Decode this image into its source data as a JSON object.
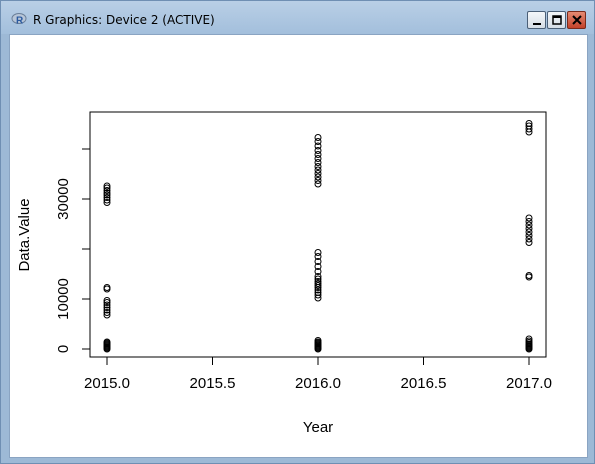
{
  "window": {
    "title": "R Graphics: Device 2 (ACTIVE)",
    "icon": "r-logo-icon",
    "controls": [
      "minimize-icon",
      "maximize-icon",
      "close-icon"
    ]
  },
  "chart_data": {
    "type": "scatter",
    "title": "",
    "xlabel": "Year",
    "ylabel": "Data.Value",
    "xlim": [
      2014.9,
      2017.1
    ],
    "ylim": [
      -1000,
      43000
    ],
    "x_ticks": [
      2015.0,
      2015.5,
      2016.0,
      2016.5,
      2017.0
    ],
    "x_tick_labels": [
      "2015.0",
      "2015.5",
      "2016.0",
      "2016.5",
      "2017.0"
    ],
    "y_ticks": [
      0,
      10000,
      20000,
      30000,
      40000
    ],
    "y_tick_labels": [
      "0",
      "10000",
      "",
      "30000",
      ""
    ],
    "grid": false,
    "series": [
      {
        "points": [
          [
            2015,
            0
          ],
          [
            2015,
            200
          ],
          [
            2015,
            400
          ],
          [
            2015,
            600
          ],
          [
            2015,
            800
          ],
          [
            2015,
            1000
          ],
          [
            2015,
            1200
          ],
          [
            2015,
            1400
          ],
          [
            2015,
            6800
          ],
          [
            2015,
            7300
          ],
          [
            2015,
            7800
          ],
          [
            2015,
            8300
          ],
          [
            2015,
            8800
          ],
          [
            2015,
            9300
          ],
          [
            2015,
            9700
          ],
          [
            2015,
            12000
          ],
          [
            2015,
            12300
          ],
          [
            2015,
            29300
          ],
          [
            2015,
            29800
          ],
          [
            2015,
            30300
          ],
          [
            2015,
            30800
          ],
          [
            2015,
            31200
          ],
          [
            2015,
            31700
          ],
          [
            2015,
            32200
          ],
          [
            2015,
            32600
          ],
          [
            2016,
            0
          ],
          [
            2016,
            200
          ],
          [
            2016,
            400
          ],
          [
            2016,
            600
          ],
          [
            2016,
            800
          ],
          [
            2016,
            1000
          ],
          [
            2016,
            1200
          ],
          [
            2016,
            1400
          ],
          [
            2016,
            1700
          ],
          [
            2016,
            10200
          ],
          [
            2016,
            10800
          ],
          [
            2016,
            11300
          ],
          [
            2016,
            11800
          ],
          [
            2016,
            12300
          ],
          [
            2016,
            12700
          ],
          [
            2016,
            13100
          ],
          [
            2016,
            13500
          ],
          [
            2016,
            14000
          ],
          [
            2016,
            14500
          ],
          [
            2016,
            15500
          ],
          [
            2016,
            16500
          ],
          [
            2016,
            17500
          ],
          [
            2016,
            18500
          ],
          [
            2016,
            19300
          ],
          [
            2016,
            33000
          ],
          [
            2016,
            33700
          ],
          [
            2016,
            34400
          ],
          [
            2016,
            35100
          ],
          [
            2016,
            35800
          ],
          [
            2016,
            36500
          ],
          [
            2016,
            37300
          ],
          [
            2016,
            38100
          ],
          [
            2016,
            38900
          ],
          [
            2016,
            39700
          ],
          [
            2016,
            40600
          ],
          [
            2016,
            41500
          ],
          [
            2016,
            42300
          ],
          [
            2017,
            0
          ],
          [
            2017,
            200
          ],
          [
            2017,
            400
          ],
          [
            2017,
            600
          ],
          [
            2017,
            800
          ],
          [
            2017,
            1000
          ],
          [
            2017,
            1300
          ],
          [
            2017,
            1600
          ],
          [
            2017,
            2000
          ],
          [
            2017,
            14400
          ],
          [
            2017,
            14700
          ],
          [
            2017,
            21300
          ],
          [
            2017,
            22000
          ],
          [
            2017,
            22700
          ],
          [
            2017,
            23400
          ],
          [
            2017,
            24100
          ],
          [
            2017,
            24800
          ],
          [
            2017,
            25500
          ],
          [
            2017,
            26200
          ],
          [
            2017,
            43400
          ],
          [
            2017,
            44000
          ],
          [
            2017,
            44600
          ],
          [
            2017,
            45100
          ]
        ]
      }
    ]
  }
}
